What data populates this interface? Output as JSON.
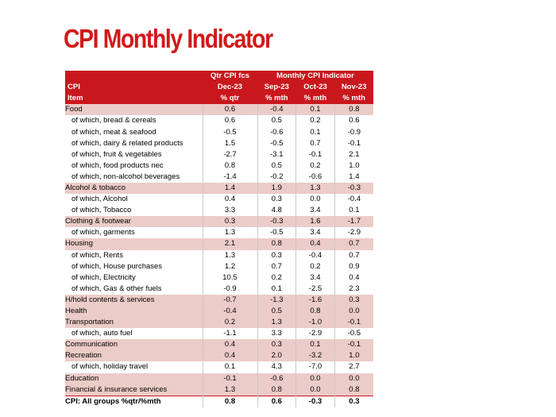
{
  "title": "CPI Monthly Indicator",
  "header": {
    "row1": [
      "",
      "Qtr CPI fcs",
      "Monthly CPI Indicator"
    ],
    "row2": [
      "CPI",
      "Dec-23",
      "Sep-23",
      "Oct-23",
      "Nov-23"
    ],
    "row3": [
      "Item",
      "% qtr",
      "% mth",
      "% mth",
      "% mth"
    ]
  },
  "rows": [
    {
      "label": "Food",
      "group": true,
      "values": [
        "0.6",
        "-0.4",
        "0.1",
        "0.8"
      ]
    },
    {
      "label": "of which, bread & cereals",
      "group": false,
      "values": [
        "0.6",
        "0.5",
        "0.2",
        "0.6"
      ]
    },
    {
      "label": "of which, meat & seafood",
      "group": false,
      "values": [
        "-0.5",
        "-0.6",
        "0.1",
        "-0.9"
      ]
    },
    {
      "label": "of which, dairy & related products",
      "group": false,
      "values": [
        "1.5",
        "-0.5",
        "0.7",
        "-0.1"
      ]
    },
    {
      "label": "of which, fruit & vegetables",
      "group": false,
      "values": [
        "-2.7",
        "-3.1",
        "-0.1",
        "2.1"
      ]
    },
    {
      "label": "of which, food products nec",
      "group": false,
      "values": [
        "0.8",
        "0.5",
        "0.2",
        "1.0"
      ]
    },
    {
      "label": "of which, non-alcohol beverages",
      "group": false,
      "values": [
        "-1.4",
        "-0.2",
        "-0.6",
        "1.4"
      ]
    },
    {
      "label": "Alcohol & tobacco",
      "group": true,
      "values": [
        "1.4",
        "1.9",
        "1.3",
        "-0.3"
      ]
    },
    {
      "label": "of which, Alcohol",
      "group": false,
      "values": [
        "0.4",
        "0.3",
        "0.0",
        "-0.4"
      ]
    },
    {
      "label": "of which, Tobacco",
      "group": false,
      "values": [
        "3.3",
        "4.8",
        "3.4",
        "0.1"
      ]
    },
    {
      "label": "Clothing & footwear",
      "group": true,
      "values": [
        "0.3",
        "-0.3",
        "1.6",
        "-1.7"
      ]
    },
    {
      "label": "of which, garments",
      "group": false,
      "values": [
        "1.3",
        "-0.5",
        "3.4",
        "-2.9"
      ]
    },
    {
      "label": "Housing",
      "group": true,
      "values": [
        "2.1",
        "0.8",
        "0.4",
        "0.7"
      ]
    },
    {
      "label": "of which, Rents",
      "group": false,
      "values": [
        "1.3",
        "0.3",
        "-0.4",
        "0.7"
      ]
    },
    {
      "label": "of which, House purchases",
      "group": false,
      "values": [
        "1.2",
        "0.7",
        "0.2",
        "0.9"
      ]
    },
    {
      "label": "of which, Electricity",
      "group": false,
      "values": [
        "10.5",
        "0.2",
        "3.4",
        "0.4"
      ]
    },
    {
      "label": "of which, Gas & other fuels",
      "group": false,
      "values": [
        "-0.9",
        "0.1",
        "-2.5",
        "2.3"
      ]
    },
    {
      "label": "H/hold contents & services",
      "group": true,
      "values": [
        "-0.7",
        "-1.3",
        "-1.6",
        "0.3"
      ]
    },
    {
      "label": "Health",
      "group": true,
      "values": [
        "-0.4",
        "0.5",
        "0.8",
        "0.0"
      ]
    },
    {
      "label": "Transportation",
      "group": true,
      "values": [
        "0.2",
        "1.3",
        "-1.0",
        "-0.1"
      ]
    },
    {
      "label": "of which, auto fuel",
      "group": false,
      "values": [
        "-1.1",
        "3.3",
        "-2.9",
        "-0.5"
      ]
    },
    {
      "label": "Communication",
      "group": true,
      "values": [
        "0.4",
        "0.3",
        "0.1",
        "-0.1"
      ]
    },
    {
      "label": "Recreation",
      "group": true,
      "values": [
        "0.4",
        "2.0",
        "-3.2",
        "1.0"
      ]
    },
    {
      "label": "of which, holiday travel",
      "group": false,
      "values": [
        "0.1",
        "4.3",
        "-7.0",
        "2.7"
      ]
    },
    {
      "label": "Education",
      "group": true,
      "values": [
        "-0.1",
        "-0.6",
        "0.0",
        "0.0"
      ]
    },
    {
      "label": "Financial & insurance services",
      "group": true,
      "values": [
        "1.3",
        "0.8",
        "0.0",
        "0.8"
      ]
    }
  ],
  "total": {
    "label": "CPI: All groups %qtr/%mth",
    "values": [
      "0.8",
      "0.6",
      "-0.3",
      "0.3"
    ]
  },
  "colors": {
    "title": "#d11a1a",
    "header_bg": "#c8181d",
    "group_bg": "#ecccc8"
  }
}
